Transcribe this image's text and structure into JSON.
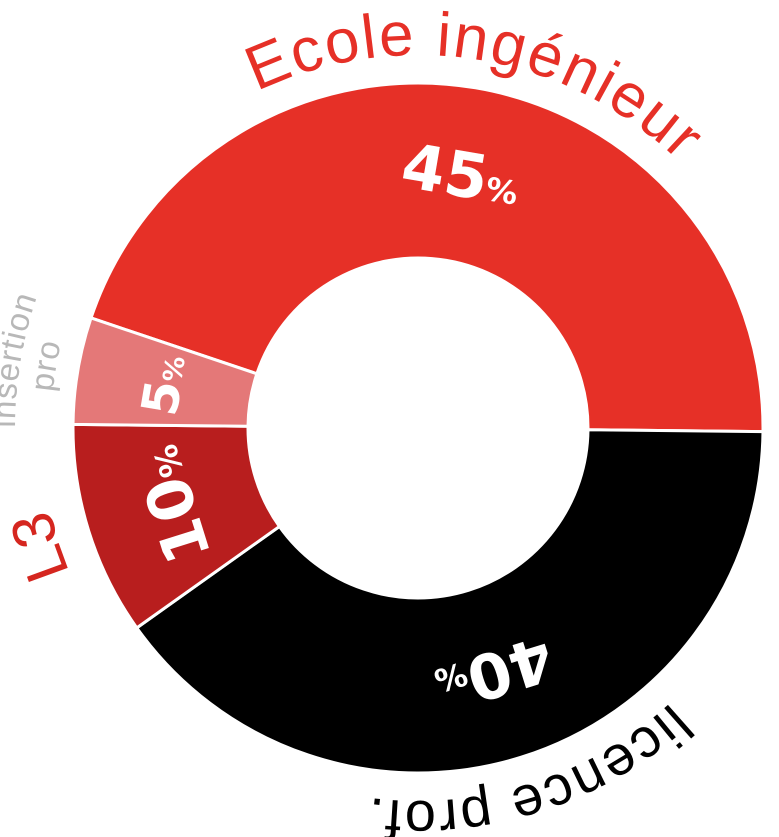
{
  "chart_data": {
    "type": "pie",
    "variant": "donut",
    "title": "",
    "slices": [
      {
        "label": "Ecole ingénieur",
        "value": 45,
        "value_label": "45",
        "unit": "%",
        "color": "#e63027",
        "label_color": "#e63027"
      },
      {
        "label": "licence prof.",
        "value": 40,
        "value_label": "40",
        "unit": "%",
        "color": "#000000",
        "label_color": "#000000"
      },
      {
        "label": "L3",
        "value": 10,
        "value_label": "10",
        "unit": "%",
        "color": "#b81e1e",
        "label_color": "#d5261f"
      },
      {
        "label": "insertion pro",
        "value": 5,
        "value_label": "5",
        "unit": "%",
        "color": "#e47878",
        "label_color": "#b8b8b8"
      }
    ],
    "legend": "none",
    "value_label_color": "#ffffff"
  }
}
